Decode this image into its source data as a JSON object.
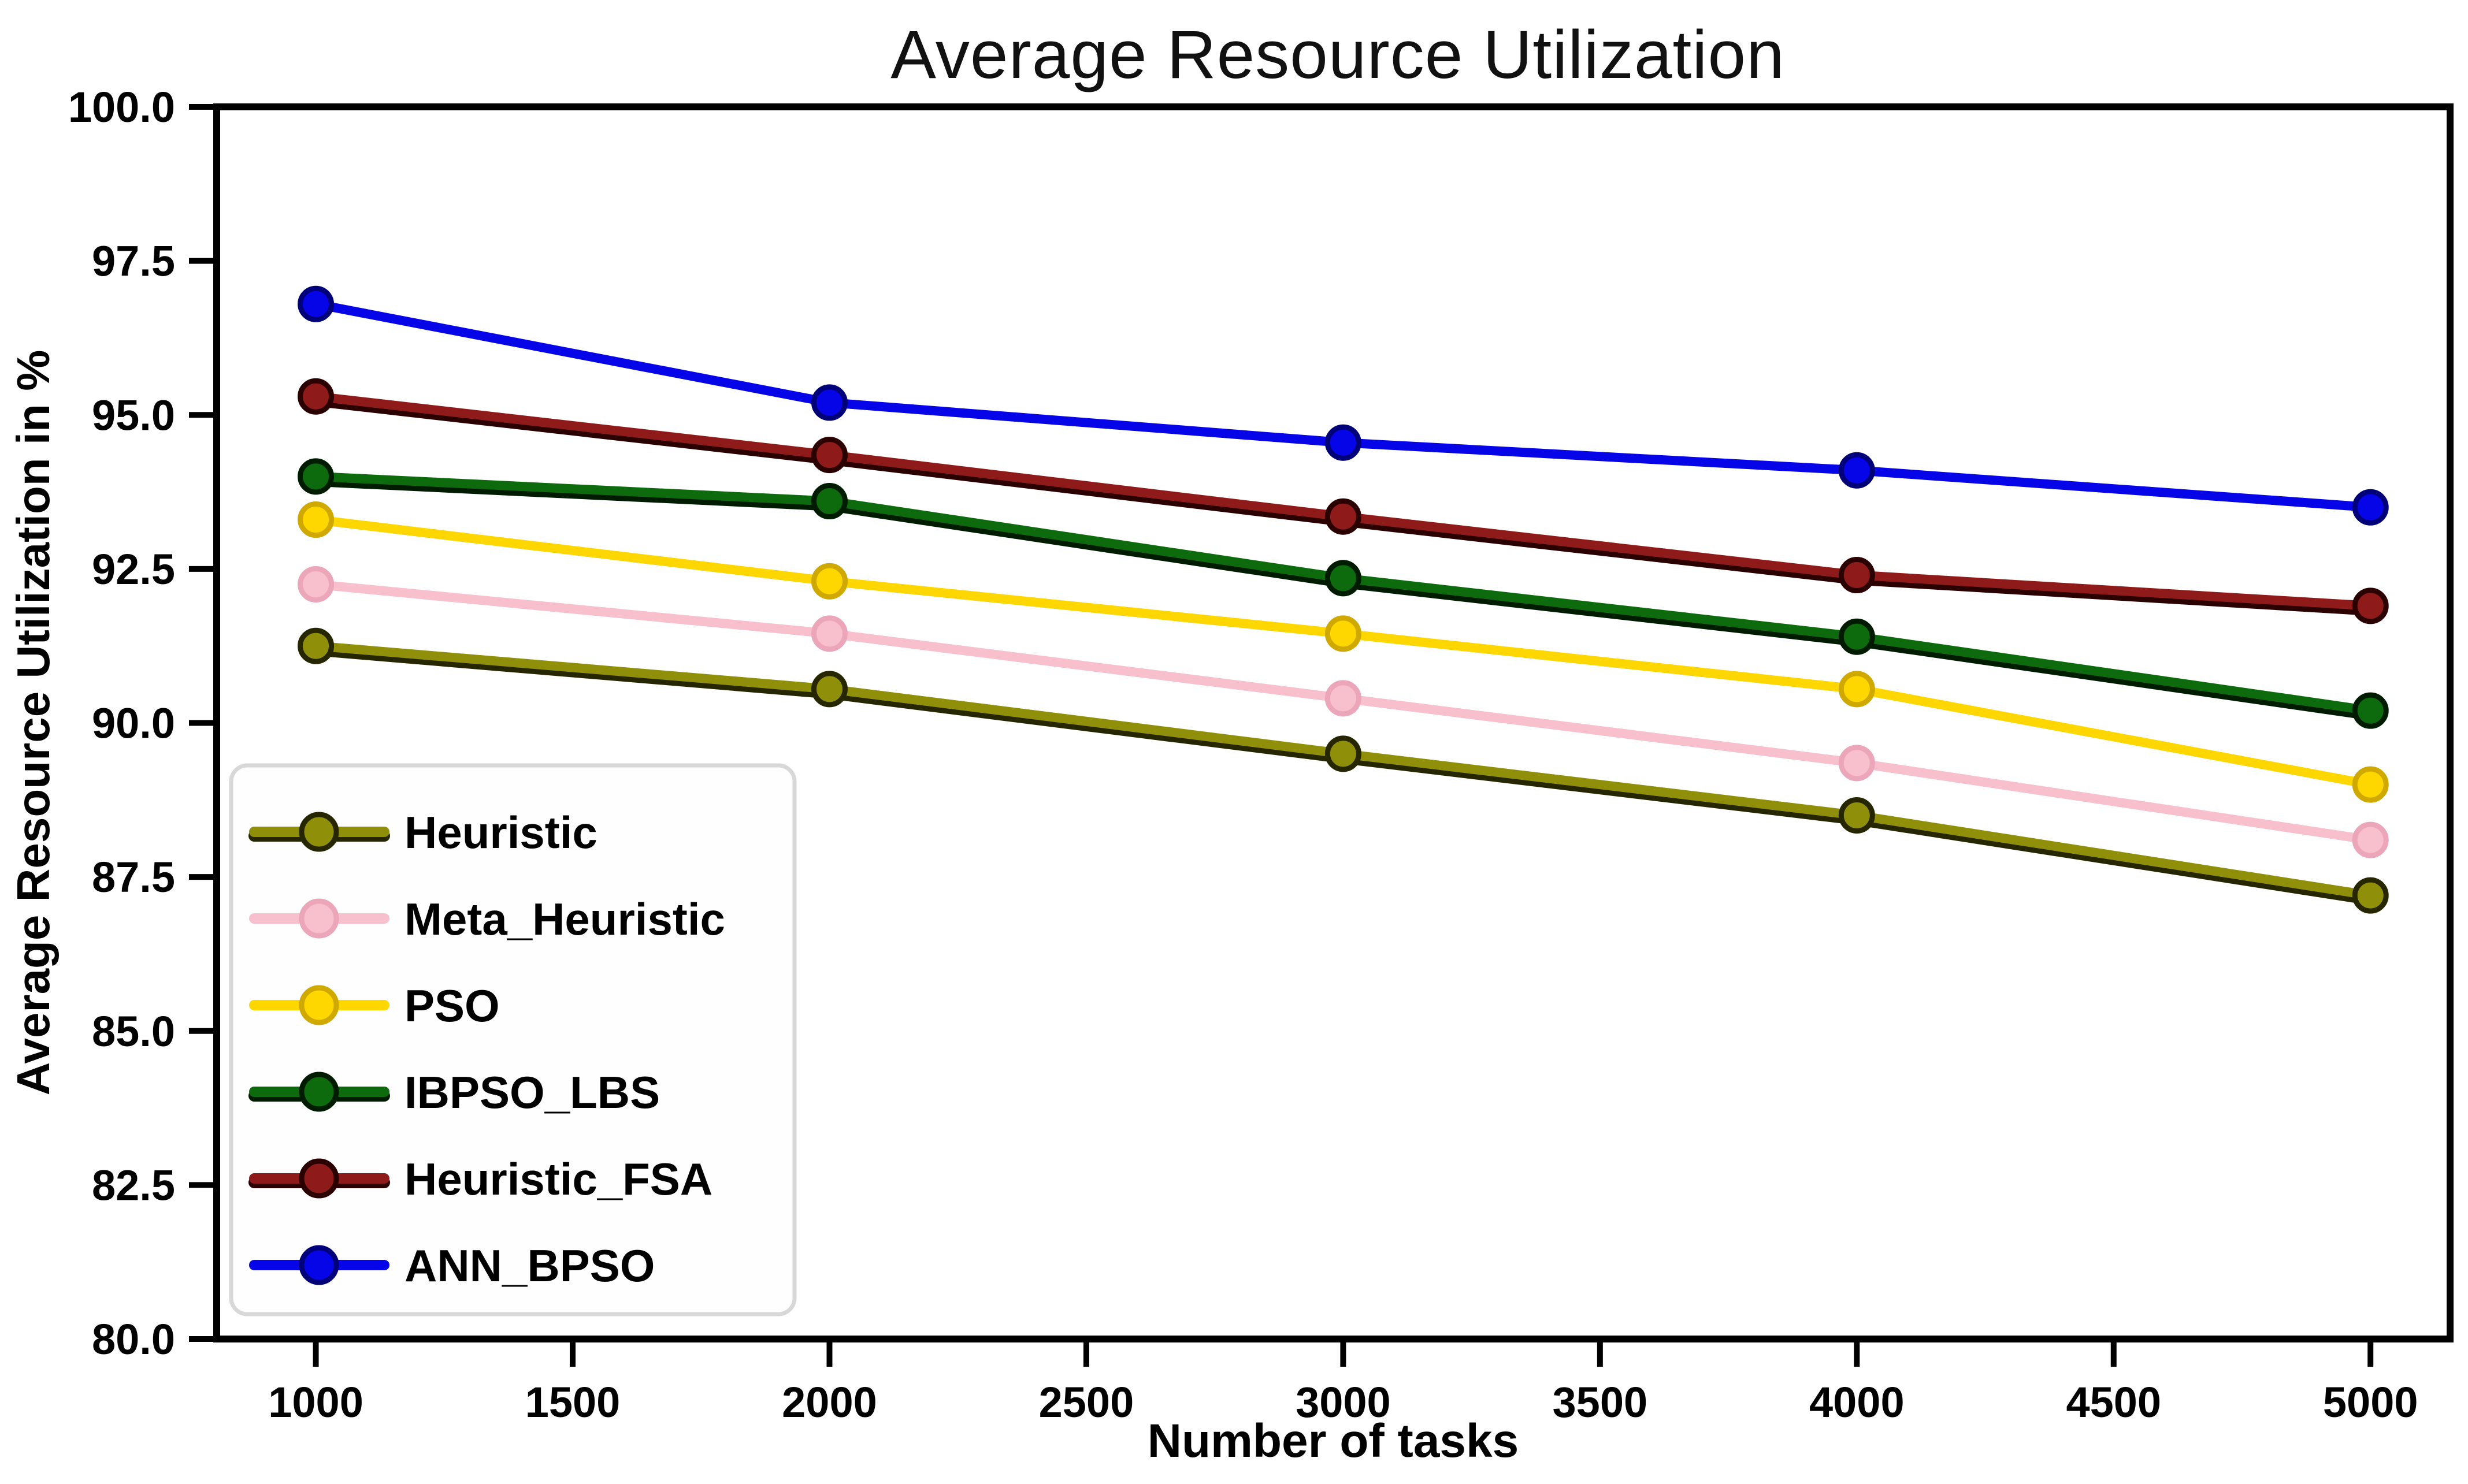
{
  "chart_data": {
    "type": "line",
    "title": "Average Resource Utilization",
    "xlabel": "Number of tasks",
    "ylabel": "Average Resource Utilization in %",
    "x": [
      1000,
      2000,
      3000,
      4000,
      5000
    ],
    "xlim": [
      807,
      5155
    ],
    "ylim": [
      80.0,
      100.0
    ],
    "xticks": [
      1000,
      1500,
      2000,
      2500,
      3000,
      3500,
      4000,
      4500,
      5000
    ],
    "ytick_labels": [
      "80.0",
      "82.5",
      "85.0",
      "87.5",
      "90.0",
      "92.5",
      "95.0",
      "97.5",
      "100.0"
    ],
    "grid": false,
    "legend_position": "lower left",
    "series": [
      {
        "name": "Heuristic",
        "color": "#8f8f0a",
        "edge": "#262600",
        "shadow": true,
        "values": [
          91.25,
          90.55,
          89.5,
          88.5,
          87.2
        ]
      },
      {
        "name": "Meta_Heuristic",
        "color": "#f8bfcc",
        "edge": "#eca6ba",
        "shadow": false,
        "values": [
          92.25,
          91.45,
          90.4,
          89.35,
          88.1
        ]
      },
      {
        "name": "PSO",
        "color": "#ffd700",
        "edge": "#cfa900",
        "shadow": false,
        "values": [
          93.3,
          92.3,
          91.45,
          90.55,
          89.0
        ]
      },
      {
        "name": "IBPSO_LBS",
        "color": "#0d6a0d",
        "edge": "#001c00",
        "shadow": true,
        "values": [
          94.0,
          93.6,
          92.35,
          91.4,
          90.2
        ]
      },
      {
        "name": "Heuristic_FSA",
        "color": "#8e1a1a",
        "edge": "#2b0000",
        "shadow": true,
        "values": [
          95.3,
          94.35,
          93.35,
          92.4,
          91.9
        ]
      },
      {
        "name": "ANN_BPSO",
        "color": "#0505e8",
        "edge": "#000078",
        "shadow": false,
        "values": [
          96.8,
          95.2,
          94.55,
          94.1,
          93.5
        ]
      }
    ],
    "axis_color": "#000000",
    "legend_border_color": "#d8d8d8",
    "legend_bg_color": "#fefefe"
  }
}
